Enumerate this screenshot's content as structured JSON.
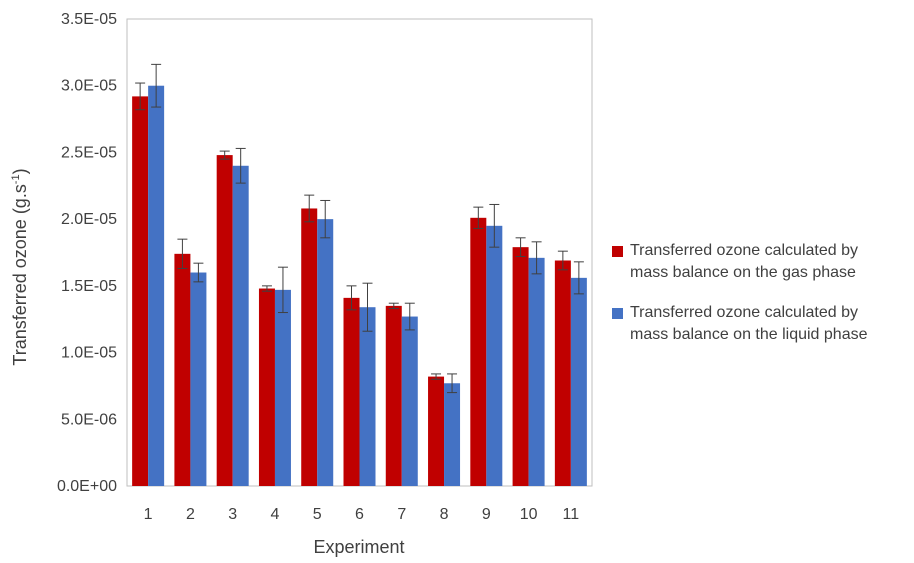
{
  "chart_data": {
    "type": "bar",
    "title": "",
    "xlabel": "Experiment",
    "ylabel": "Transferred ozone (g.s",
    "ylabel_sup": "-1",
    "ylabel_end": ")",
    "ylim": [
      0,
      3.5e-05
    ],
    "ytick_values": [
      0,
      5e-06,
      1e-05,
      1.5e-05,
      2e-05,
      2.5e-05,
      3e-05,
      3.5e-05
    ],
    "ytick_labels": [
      "0.0E+00",
      "5.0E-06",
      "1.0E-05",
      "1.5E-05",
      "2.0E-05",
      "2.5E-05",
      "3.0E-05",
      "3.5E-05"
    ],
    "categories": [
      "1",
      "2",
      "3",
      "4",
      "5",
      "6",
      "7",
      "8",
      "9",
      "10",
      "11"
    ],
    "grid": false,
    "legend_position": "right",
    "series": [
      {
        "name": "Transferred ozone calculated by mass balance on the gas phase",
        "color": "#c00000",
        "values": [
          2.92e-05,
          1.74e-05,
          2.48e-05,
          1.48e-05,
          2.08e-05,
          1.41e-05,
          1.35e-05,
          8.2e-06,
          2.01e-05,
          1.79e-05,
          1.69e-05
        ],
        "errors": [
          1e-06,
          1.1e-06,
          3e-07,
          2e-07,
          1e-06,
          9e-07,
          2e-07,
          2e-07,
          8e-07,
          7e-07,
          7e-07
        ]
      },
      {
        "name": "Transferred ozone calculated by mass balance on the liquid phase",
        "color": "#4472c4",
        "values": [
          3e-05,
          1.6e-05,
          2.4e-05,
          1.47e-05,
          2e-05,
          1.34e-05,
          1.27e-05,
          7.7e-06,
          1.95e-05,
          1.71e-05,
          1.56e-05
        ],
        "errors": [
          1.6e-06,
          7e-07,
          1.3e-06,
          1.7e-06,
          1.4e-06,
          1.8e-06,
          1e-06,
          7e-07,
          1.6e-06,
          1.2e-06,
          1.2e-06
        ]
      }
    ],
    "legend": [
      {
        "line1": "Transferred ozone calculated by",
        "line2": "mass balance on the gas phase"
      },
      {
        "line1": "Transferred ozone calculated by",
        "line2": "mass balance on the liquid phase"
      }
    ]
  }
}
